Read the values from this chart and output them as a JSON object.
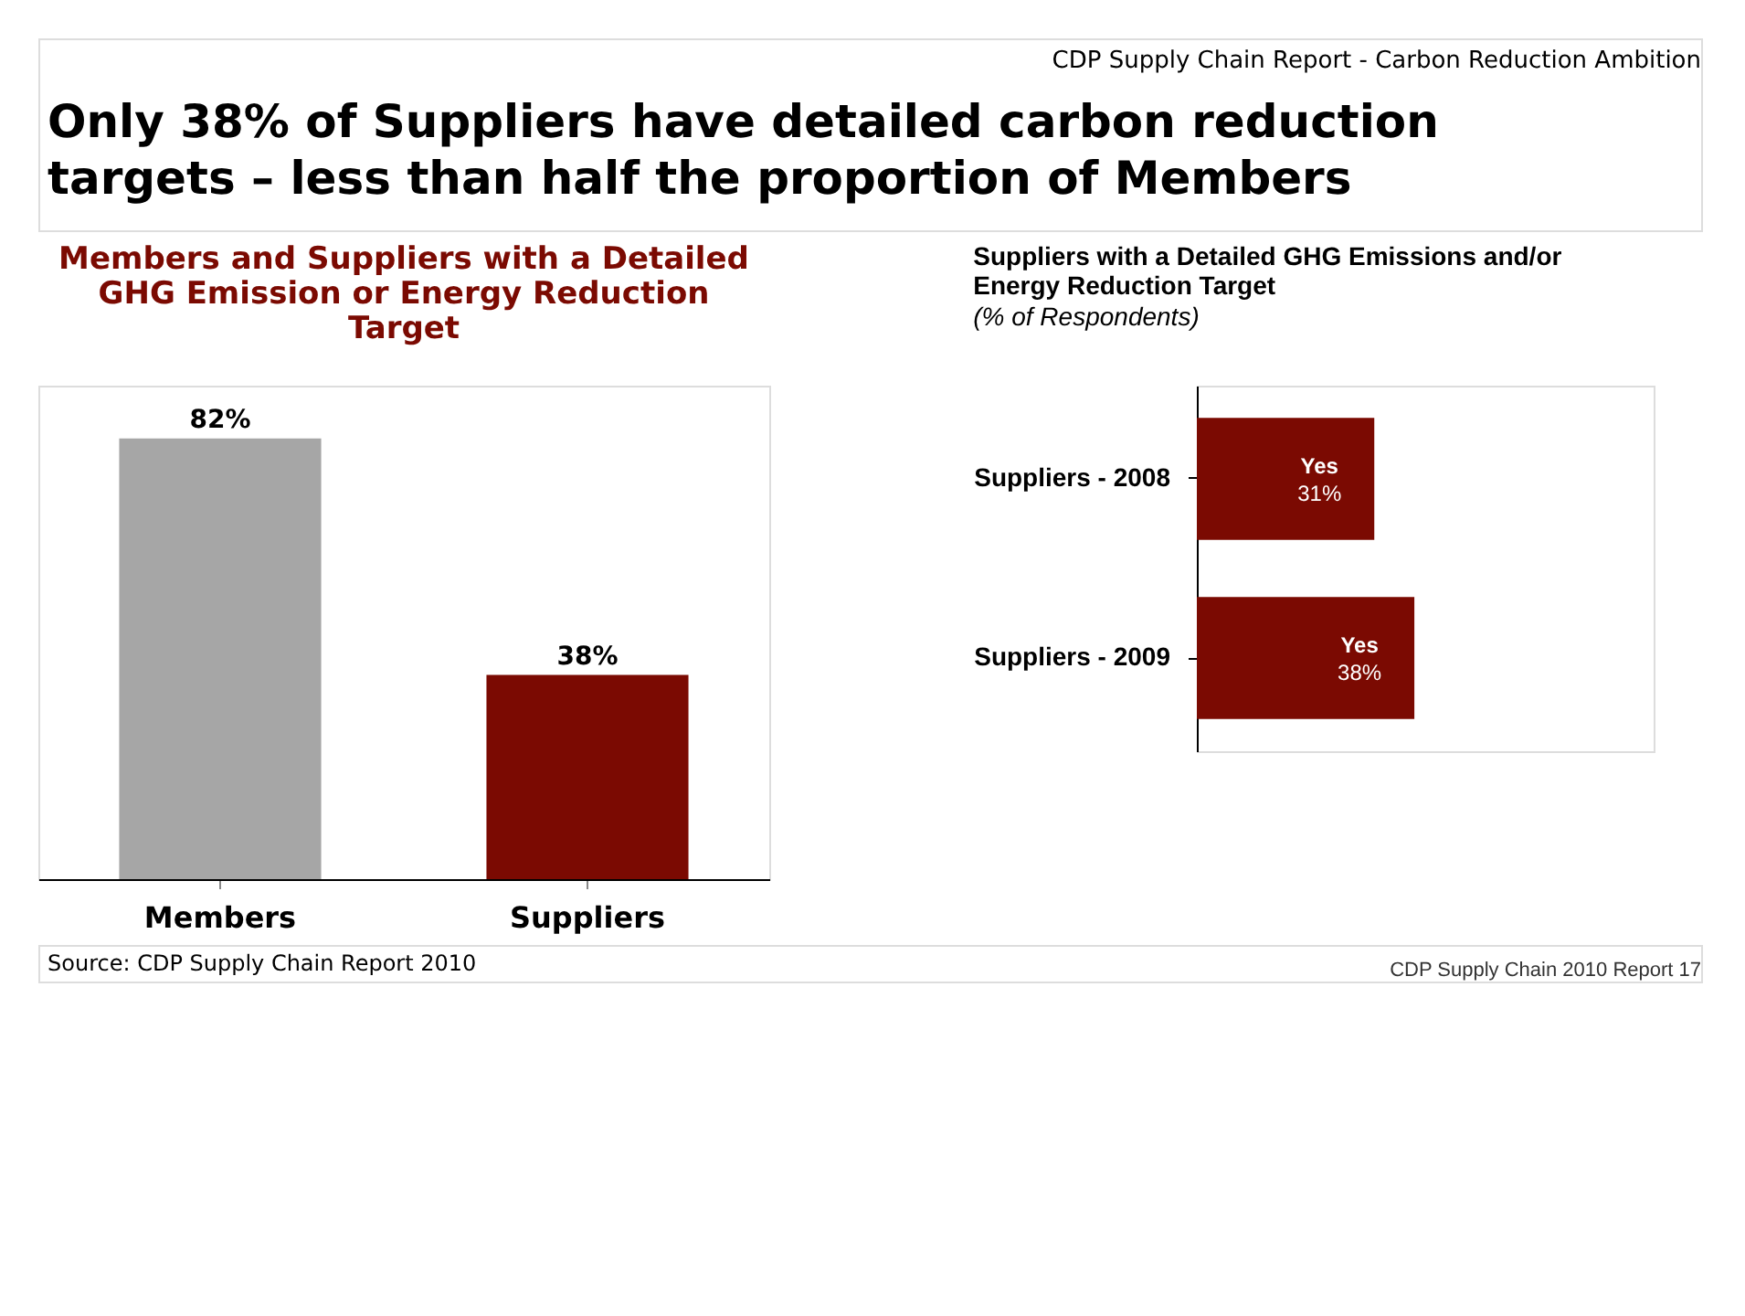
{
  "chart_data": [
    {
      "type": "bar",
      "title": "Members and Suppliers with a Detailed GHG Emission or Energy Reduction Target",
      "categories": [
        "Members",
        "Suppliers"
      ],
      "values": [
        82,
        38
      ],
      "colors": [
        "#a6a6a6",
        "#7b0a02"
      ],
      "value_labels": [
        "82%",
        "38%"
      ],
      "grid": false,
      "tick_labels": "x",
      "annotations": [
        "CDP Supply Chain Report - Carbon Reduction Ambition",
        "Only 38% of Suppliers have detailed carbon reduction targets – less than half the proportion of Members",
        "Source: CDP Supply Chain Report 2010",
        "CDP Supply Chain 2010 Report   17"
      ]
    },
    {
      "type": "bar",
      "orientation": "horizontal",
      "title": "Suppliers with a Detailed GHG Emissions and/or Energy Reduction Target",
      "subtitle": "(% of Respondents)",
      "categories": [
        "Suppliers - 2008",
        "Suppliers - 2009"
      ],
      "series": [
        {
          "name": "Yes",
          "color": "#7b0a02",
          "values": [
            31,
            38
          ],
          "value_labels": [
            "31%",
            "38%"
          ]
        }
      ],
      "grid": false,
      "tick_labels": "y"
    }
  ]
}
